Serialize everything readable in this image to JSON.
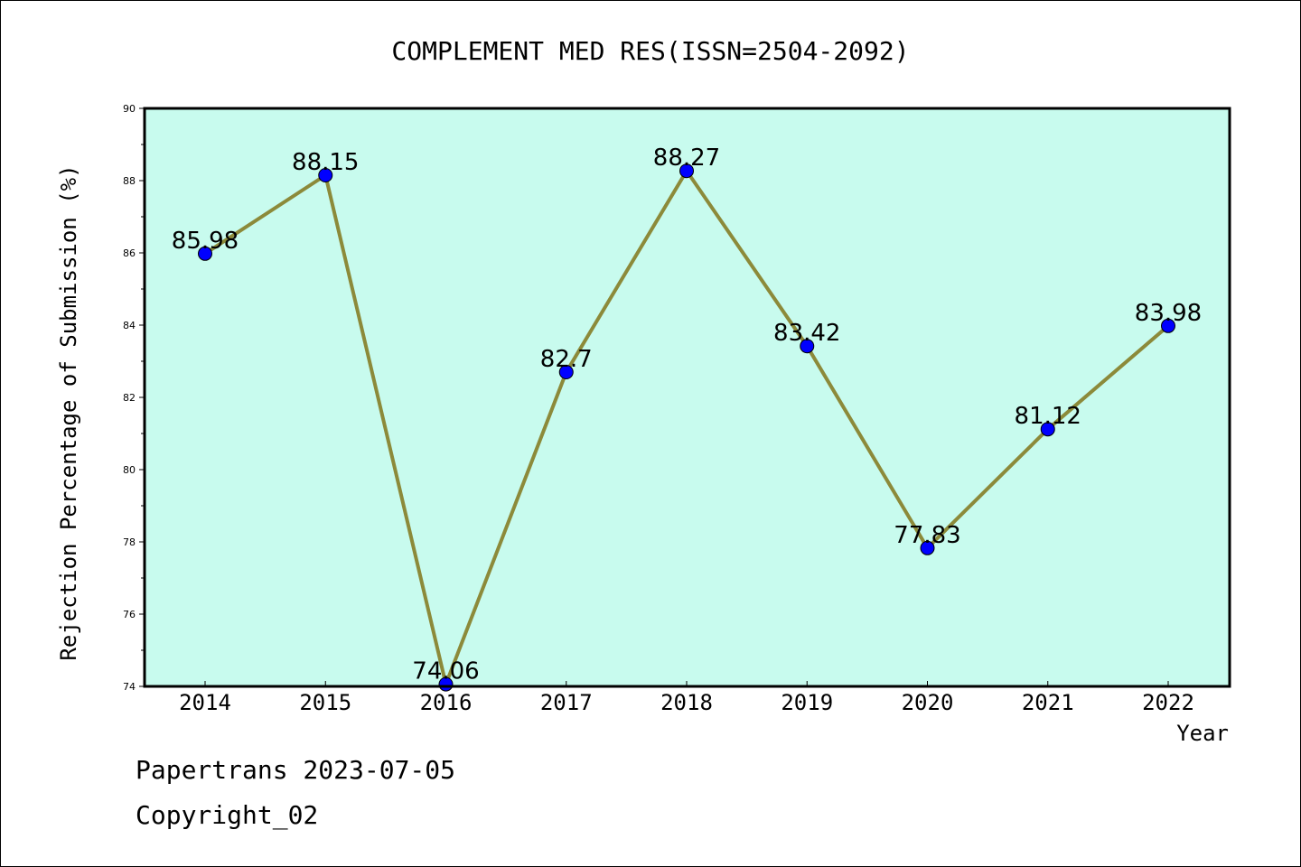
{
  "chart_data": {
    "type": "line",
    "title": "COMPLEMENT MED RES(ISSN=2504-2092)",
    "xlabel": "Year",
    "ylabel": "Rejection Percentage of Submission (%)",
    "categories": [
      "2014",
      "2015",
      "2016",
      "2017",
      "2018",
      "2019",
      "2020",
      "2021",
      "2022"
    ],
    "values": [
      85.98,
      88.15,
      74.06,
      82.7,
      88.27,
      83.42,
      77.83,
      81.12,
      83.98
    ],
    "data_labels": [
      "85.98",
      "88.15",
      "74.06",
      "82.7",
      "88.27",
      "83.42",
      "77.83",
      "81.12",
      "83.98"
    ],
    "ylim": [
      74,
      90
    ],
    "yticks": [
      "74",
      "76",
      "78",
      "80",
      "82",
      "84",
      "86",
      "88",
      "90"
    ],
    "grid": false,
    "colors": {
      "plot_background": "#c8fbee",
      "line": "#8c8a3a",
      "marker": "#0000ff"
    }
  },
  "footer": {
    "line1": "Papertrans 2023-07-05",
    "line2": "Copyright_02"
  }
}
